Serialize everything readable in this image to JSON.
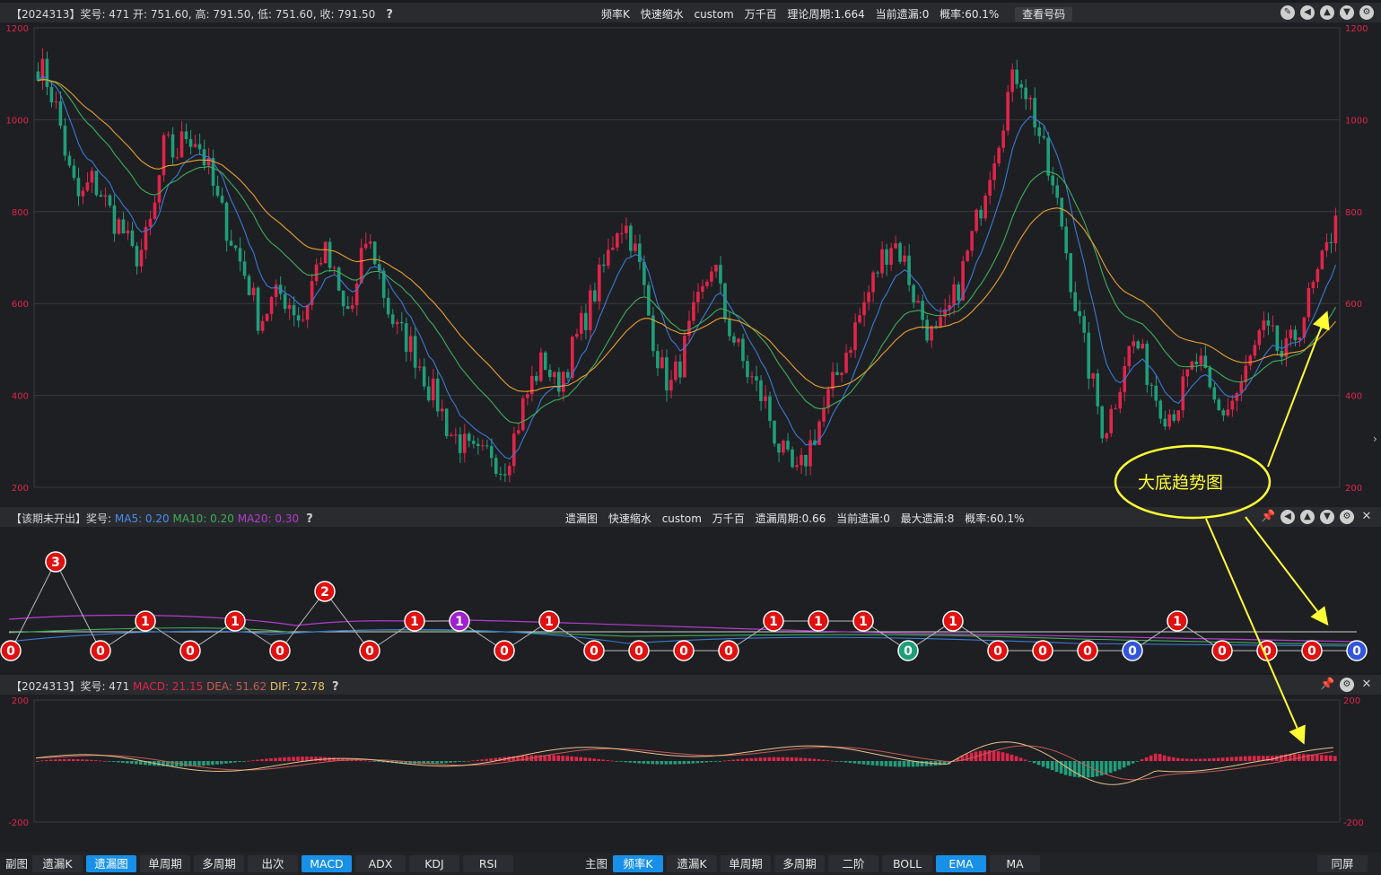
{
  "main_header": {
    "info": "【2024313】奖号: 471  开: 751.60, 高: 791.50, 低: 751.60, 收: 791.50",
    "center_items": [
      "频率K",
      "快速缩水",
      "custom",
      "万千百",
      "理论周期:1.664",
      "当前遗漏:0",
      "概率:60.1%"
    ],
    "check_button": "查看号码",
    "help_icon": "help-icon"
  },
  "sub_header": {
    "prefix": "【该期未开出】奖号:",
    "ma5": "MA5: 0.20",
    "ma10": "MA10: 0.20",
    "ma20": "MA20: 0.30",
    "center_items": [
      "遗漏图",
      "快速缩水",
      "custom",
      "万千百",
      "遗漏周期:0.66",
      "当前遗漏:0",
      "最大遗漏:8",
      "概率:60.1%"
    ]
  },
  "macd_header": {
    "prefix": "【2024313】奖号: 471",
    "macd": "MACD: 21.15",
    "dea": "DEA: 51.62",
    "dif": "DIF: 72.78"
  },
  "annotation": "大底趋势图",
  "colors": {
    "up": "#e0254a",
    "down": "#1f9e7a",
    "ma_blue": "#3a7bd5",
    "ma_green": "#3fae5a",
    "ma_orange": "#e8a030",
    "accent": "#1890e8",
    "annotation": "#ffff33"
  },
  "chart_data": [
    {
      "type": "candlestick",
      "yticks": [
        "1200",
        "1000",
        "800",
        "600",
        "400",
        "200"
      ],
      "ylim": [
        200,
        1200
      ],
      "close_path": [
        1120,
        1080,
        1000,
        880,
        820,
        870,
        840,
        790,
        760,
        700,
        720,
        800,
        950,
        920,
        970,
        960,
        900,
        820,
        760,
        700,
        640,
        560,
        600,
        620,
        600,
        560,
        650,
        720,
        660,
        580,
        600,
        740,
        700,
        600,
        540,
        520,
        480,
        420,
        380,
        320,
        300,
        270,
        260,
        280,
        240,
        300,
        380,
        440,
        480,
        420,
        460,
        520,
        580,
        640,
        700,
        780,
        760,
        680,
        560,
        460,
        420,
        480,
        560,
        620,
        700,
        580,
        520,
        460,
        420,
        380,
        300,
        250,
        220,
        280,
        340,
        400,
        460,
        520,
        580,
        640,
        700,
        740,
        700,
        620,
        560,
        520,
        560,
        620,
        700,
        780,
        880,
        960,
        1060,
        1110,
        1040,
        960,
        860,
        780,
        640,
        520,
        420,
        320,
        380,
        480,
        520,
        460,
        400,
        360,
        380,
        440,
        480,
        400,
        360,
        380,
        420,
        480,
        540,
        520,
        480,
        520,
        580,
        640,
        700,
        790
      ]
    },
    {
      "type": "omission",
      "nodes": [
        "0",
        "3",
        "0",
        "1",
        "0",
        "1",
        "0",
        "2",
        "0",
        "1",
        "1",
        "0",
        "1",
        "0",
        "0",
        "0",
        "0",
        "1",
        "1",
        "1",
        "0",
        "1",
        "0",
        "0",
        "0",
        "0",
        "1",
        "0",
        "0",
        "0",
        "0"
      ]
    },
    {
      "type": "macd",
      "yticks": [
        "200",
        "-200"
      ],
      "ylim": [
        -200,
        200
      ]
    }
  ],
  "bottom_left": {
    "label": "副图",
    "tabs": [
      "遗漏K",
      "遗漏图",
      "单周期",
      "多周期",
      "出次",
      "MACD",
      "ADX",
      "KDJ",
      "RSI"
    ],
    "active": [
      "遗漏图",
      "MACD"
    ]
  },
  "bottom_right": {
    "label": "主图",
    "tabs": [
      "频率K",
      "遗漏K",
      "单周期",
      "多周期",
      "二阶",
      "BOLL",
      "EMA",
      "MA"
    ],
    "active": [
      "频率K",
      "EMA"
    ],
    "same_screen": "同屏"
  }
}
